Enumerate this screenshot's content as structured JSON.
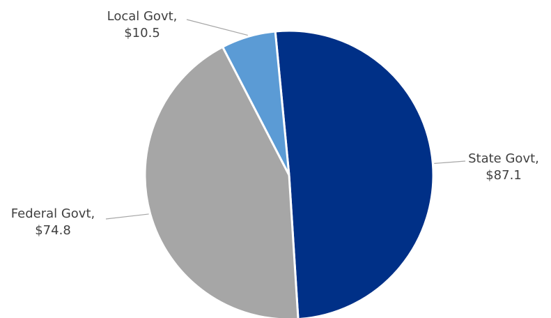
{
  "chart_data": {
    "type": "pie",
    "categories": [
      "State Govt",
      "Federal Govt",
      "Local Govt"
    ],
    "values": [
      87.1,
      74.8,
      10.5
    ],
    "value_labels": [
      "$87.1",
      "$74.8",
      "$10.5"
    ],
    "label_texts": [
      "State Govt,",
      "Federal Govt,",
      "Local Govt,"
    ],
    "colors": [
      "#003087",
      "#A6A6A6",
      "#5B9BD5"
    ],
    "label_line_color": "#A6A6A6",
    "title": "",
    "legend": "none"
  }
}
